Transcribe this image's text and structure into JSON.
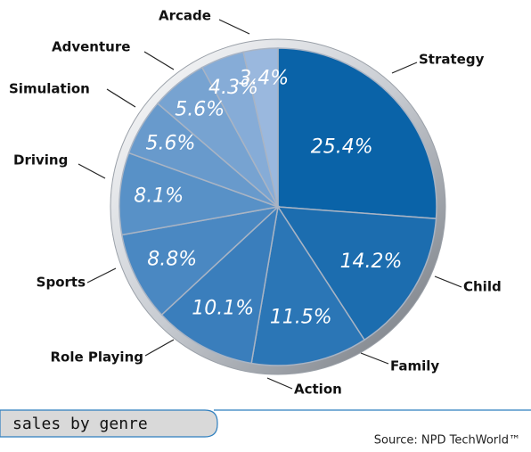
{
  "chart_data": {
    "type": "pie",
    "categories": [
      "Strategy",
      "Child",
      "Family",
      "Action",
      "Role Playing",
      "Sports",
      "Driving",
      "Simulation",
      "Adventure",
      "Arcade"
    ],
    "values": [
      25.4,
      14.2,
      11.5,
      10.1,
      8.8,
      8.1,
      5.6,
      5.6,
      4.3,
      3.4
    ],
    "value_labels": [
      "25.4%",
      "14.2%",
      "11.5%",
      "10.1%",
      "8.8%",
      "8.1%",
      "5.6%",
      "5.6%",
      "4.3%",
      "3.4%"
    ],
    "colors": [
      "#0a63a8",
      "#1c6daf",
      "#2b76b6",
      "#3a7ebc",
      "#4a88c2",
      "#5891c7",
      "#689acc",
      "#77a3d1",
      "#86acd7",
      "#9ab8de"
    ],
    "caption": "sales by genre",
    "source": "Source: NPD TechWorld™"
  }
}
